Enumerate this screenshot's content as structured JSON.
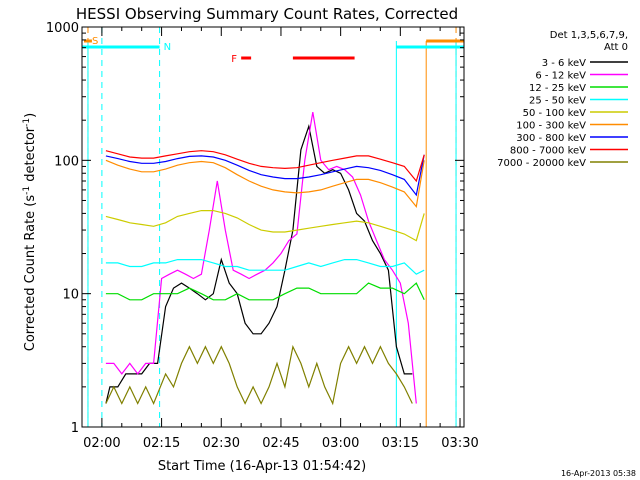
{
  "chart_data": {
    "type": "line",
    "title": "HESSI Observing Summary Count Rates, Corrected",
    "xlabel": "Start Time (16-Apr-13 01:54:42)",
    "ylabel": "Corrected Count Rate (s⁻¹ detector⁻¹)",
    "ylabel_main": "Corrected Count Rate (s",
    "ylabel_mid": " detector",
    "ylabel_end": ")",
    "ylabel_sup": "-1",
    "y_scale": "log",
    "ylim": [
      1,
      1000
    ],
    "xlim_minutes": [
      115,
      211
    ],
    "x_ticks": [
      {
        "label": "02:00",
        "min": 120
      },
      {
        "label": "02:15",
        "min": 135
      },
      {
        "label": "02:30",
        "min": 150
      },
      {
        "label": "02:45",
        "min": 165
      },
      {
        "label": "03:00",
        "min": 180
      },
      {
        "label": "03:15",
        "min": 195
      },
      {
        "label": "03:30",
        "min": 210
      }
    ],
    "y_ticks": [
      {
        "label": "1",
        "value": 1
      },
      {
        "label": "10",
        "value": 10
      },
      {
        "label": "100",
        "value": 100
      },
      {
        "label": "1000",
        "value": 1000
      }
    ],
    "legend_header": [
      "Det 1,3,5,6,7,9,",
      "Att 0"
    ],
    "legend_placement": "right",
    "timestamp": "16-Apr-2013 05:38",
    "series": [
      {
        "name": "3 - 6 keV",
        "color": "#000000",
        "x": [
          121,
          122,
          124,
          126,
          128,
          130,
          132,
          134,
          136,
          138,
          140,
          142,
          144,
          146,
          148,
          150,
          152,
          154,
          156,
          158,
          160,
          162,
          164,
          166,
          168,
          170,
          172,
          174,
          176,
          178,
          180,
          182,
          184,
          186,
          188,
          190,
          192,
          194,
          196,
          198
        ],
        "y": [
          1.5,
          2,
          2,
          2.5,
          2.5,
          2.5,
          3,
          3,
          8,
          11,
          12,
          11,
          10,
          9,
          10,
          18,
          12,
          10,
          6,
          5,
          5,
          6,
          8,
          15,
          30,
          120,
          180,
          90,
          80,
          85,
          80,
          60,
          40,
          35,
          25,
          20,
          15,
          4,
          2.5,
          2.5
        ]
      },
      {
        "name": "6 - 12 keV",
        "color": "#ff00ff",
        "x": [
          121,
          123,
          125,
          127,
          129,
          131,
          133,
          135,
          137,
          139,
          141,
          143,
          145,
          147,
          149,
          151,
          153,
          155,
          157,
          159,
          161,
          163,
          165,
          167,
          169,
          171,
          173,
          175,
          177,
          179,
          181,
          183,
          185,
          187,
          189,
          191,
          193,
          195,
          197,
          199
        ],
        "y": [
          3,
          3,
          2.5,
          3,
          2.5,
          3,
          3,
          13,
          14,
          15,
          14,
          13,
          14,
          30,
          70,
          30,
          15,
          14,
          13,
          14,
          15,
          17,
          20,
          25,
          28,
          100,
          230,
          100,
          85,
          90,
          85,
          75,
          55,
          35,
          25,
          18,
          15,
          12,
          6,
          1.5
        ]
      },
      {
        "name": "12 - 25 keV",
        "color": "#00dd00",
        "x": [
          121,
          124,
          127,
          130,
          133,
          136,
          139,
          142,
          145,
          148,
          151,
          154,
          157,
          160,
          163,
          166,
          169,
          172,
          175,
          178,
          181,
          184,
          187,
          190,
          193,
          196,
          199,
          201
        ],
        "y": [
          10,
          10,
          9,
          9,
          10,
          10,
          10,
          11,
          10,
          9,
          9,
          10,
          9,
          9,
          9,
          10,
          11,
          11,
          10,
          10,
          10,
          10,
          12,
          11,
          11,
          10,
          12,
          9
        ]
      },
      {
        "name": "25 - 50 keV",
        "color": "#00ffff",
        "x": [
          121,
          124,
          127,
          130,
          133,
          136,
          139,
          142,
          145,
          148,
          151,
          154,
          157,
          160,
          163,
          166,
          169,
          172,
          175,
          178,
          181,
          184,
          187,
          190,
          193,
          196,
          199,
          201
        ],
        "y": [
          17,
          17,
          16,
          16,
          17,
          17,
          18,
          18,
          18,
          17,
          16,
          16,
          15,
          15,
          15,
          15,
          16,
          17,
          16,
          17,
          18,
          18,
          17,
          16,
          16,
          17,
          14,
          15
        ]
      },
      {
        "name": "50 - 100 keV",
        "color": "#cccc00",
        "x": [
          121,
          124,
          127,
          130,
          133,
          136,
          139,
          142,
          145,
          148,
          151,
          154,
          157,
          160,
          163,
          166,
          169,
          172,
          175,
          178,
          181,
          184,
          187,
          190,
          193,
          196,
          199,
          201
        ],
        "y": [
          38,
          36,
          34,
          33,
          32,
          34,
          38,
          40,
          42,
          42,
          40,
          37,
          33,
          30,
          29,
          29,
          30,
          31,
          32,
          33,
          34,
          35,
          34,
          32,
          30,
          28,
          25,
          40
        ]
      },
      {
        "name": "100 - 300 keV",
        "color": "#ff8c00",
        "x": [
          121,
          124,
          127,
          130,
          133,
          136,
          139,
          142,
          145,
          148,
          151,
          154,
          157,
          160,
          163,
          166,
          169,
          172,
          175,
          178,
          181,
          184,
          187,
          190,
          193,
          196,
          199,
          201
        ],
        "y": [
          100,
          92,
          86,
          82,
          82,
          86,
          92,
          96,
          98,
          96,
          88,
          78,
          70,
          64,
          60,
          58,
          57,
          58,
          60,
          64,
          68,
          72,
          72,
          68,
          63,
          58,
          45,
          100
        ]
      },
      {
        "name": "300 - 800 keV",
        "color": "#0000ff",
        "x": [
          121,
          124,
          127,
          130,
          133,
          136,
          139,
          142,
          145,
          148,
          151,
          154,
          157,
          160,
          163,
          166,
          169,
          172,
          175,
          178,
          181,
          184,
          187,
          190,
          193,
          196,
          199,
          201
        ],
        "y": [
          108,
          103,
          98,
          95,
          95,
          98,
          103,
          107,
          108,
          106,
          100,
          92,
          84,
          78,
          75,
          73,
          73,
          75,
          78,
          82,
          86,
          90,
          88,
          84,
          78,
          72,
          55,
          110
        ]
      },
      {
        "name": "800 - 7000 keV",
        "color": "#ff0000",
        "x": [
          121,
          124,
          127,
          130,
          133,
          136,
          139,
          142,
          145,
          148,
          151,
          154,
          157,
          160,
          163,
          166,
          169,
          172,
          175,
          178,
          181,
          184,
          187,
          190,
          193,
          196,
          199,
          201
        ],
        "y": [
          118,
          112,
          106,
          104,
          104,
          108,
          112,
          116,
          118,
          116,
          110,
          102,
          95,
          90,
          88,
          87,
          88,
          92,
          96,
          100,
          104,
          108,
          108,
          102,
          96,
          90,
          70,
          110
        ]
      },
      {
        "name": "7000 - 20000 keV",
        "color": "#808000",
        "x": [
          121,
          123,
          125,
          127,
          129,
          131,
          133,
          136,
          138,
          140,
          142,
          144,
          146,
          148,
          150,
          152,
          154,
          156,
          158,
          160,
          162,
          164,
          166,
          168,
          170,
          172,
          174,
          176,
          178,
          180,
          182,
          184,
          186,
          188,
          190,
          192,
          194,
          196,
          198
        ],
        "y": [
          1.5,
          2,
          1.5,
          2,
          1.5,
          2,
          1.5,
          2.5,
          2,
          3,
          4,
          3,
          4,
          3,
          4,
          3,
          2,
          1.5,
          2,
          1.5,
          2,
          3,
          2,
          4,
          3,
          2,
          3,
          2,
          1.5,
          3,
          4,
          3,
          4,
          3,
          4,
          3,
          2.5,
          2,
          1.5
        ]
      }
    ],
    "annotations": {
      "s_label": "S",
      "n_label": "N",
      "f_label": "F",
      "flare_bars": [
        [
          155,
          157.5
        ],
        [
          168,
          183.5
        ]
      ],
      "saa_marks": [
        116.5,
        209
      ],
      "night_marks": [
        120,
        134.5
      ],
      "night_top_segments": [
        [
          115,
          134.5
        ],
        [
          194,
          211
        ]
      ],
      "saa_top_segment": [
        201.5,
        211
      ],
      "cyan_verticals": [
        116.5,
        194,
        209
      ],
      "orange_verticals": [
        201.5
      ]
    }
  }
}
